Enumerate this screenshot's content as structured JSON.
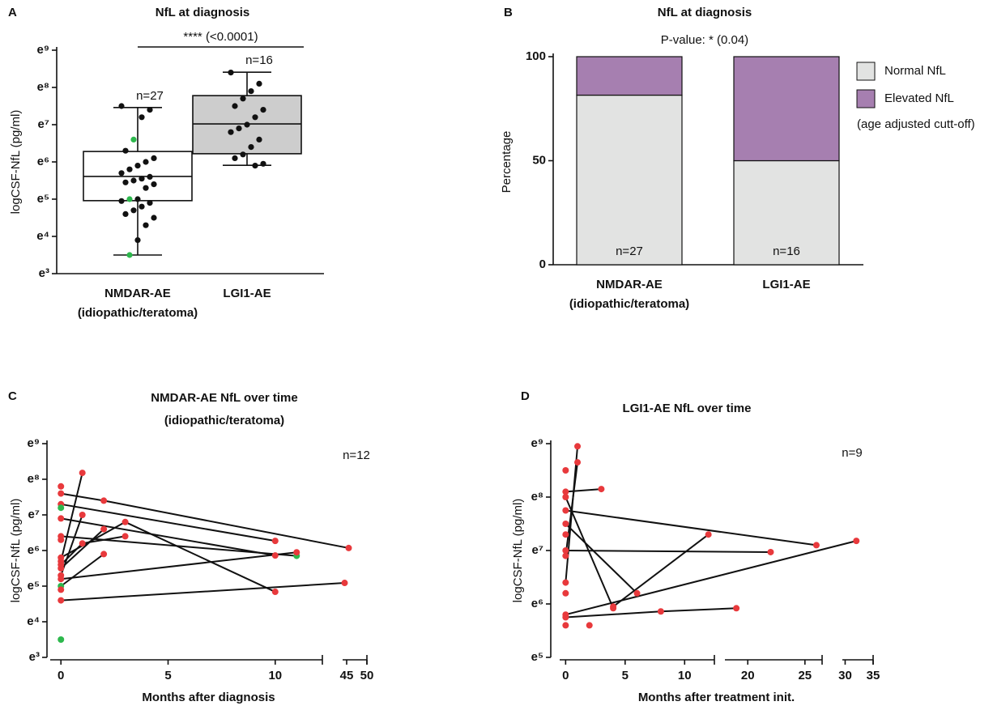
{
  "chart_data": [
    {
      "type": "box",
      "panel": "A",
      "title": "NfL at diagnosis",
      "y_label": "logCSF-NfL (pg/ml)",
      "categories": [
        [
          "NMDAR-AE",
          "(idiopathic/teratoma)"
        ],
        [
          "LGI1-AE"
        ]
      ],
      "significance": "**** (<0.0001)",
      "n_labels": [
        "n=27",
        "n=16"
      ],
      "box_colors": [
        "#ffffff",
        "#cdcdcd"
      ],
      "boxes": [
        {
          "q1": 4.96,
          "median": 5.61,
          "q3": 6.28,
          "whisker_low": 3.5,
          "whisker_high": 7.46
        },
        {
          "q1": 6.22,
          "median": 7.02,
          "q3": 7.78,
          "whisker_low": 5.91,
          "whisker_high": 8.41
        }
      ],
      "points": [
        {
          "values": [
            7.5,
            7.4,
            7.2,
            6.6,
            6.3,
            6.1,
            6.0,
            5.9,
            5.8,
            5.7,
            5.6,
            5.55,
            5.5,
            5.45,
            5.4,
            5.3,
            5.0,
            5.0,
            4.95,
            4.9,
            4.8,
            4.7,
            4.6,
            4.5,
            4.3,
            3.9,
            3.5
          ],
          "colors": [
            "#111",
            "#111",
            "#111",
            "#2db84d",
            "#111",
            "#111",
            "#111",
            "#111",
            "#111",
            "#111",
            "#111",
            "#111",
            "#111",
            "#111",
            "#111",
            "#111",
            "#111",
            "#2db84d",
            "#111",
            "#111",
            "#111",
            "#111",
            "#111",
            "#111",
            "#111",
            "#111",
            "#2db84d"
          ]
        },
        {
          "values": [
            8.4,
            8.1,
            7.9,
            7.7,
            7.5,
            7.4,
            7.2,
            7.0,
            6.9,
            6.8,
            6.6,
            6.4,
            6.2,
            6.1,
            5.95,
            5.9
          ],
          "colors": [
            "#111",
            "#111",
            "#111",
            "#111",
            "#111",
            "#111",
            "#111",
            "#111",
            "#111",
            "#111",
            "#111",
            "#111",
            "#111",
            "#111",
            "#111",
            "#111"
          ]
        }
      ],
      "ylim": [
        3,
        9
      ],
      "yticks": [
        {
          "value": 3,
          "label": "e³"
        },
        {
          "value": 4,
          "label": "e⁴"
        },
        {
          "value": 5,
          "label": "e⁵"
        },
        {
          "value": 6,
          "label": "e⁶"
        },
        {
          "value": 7,
          "label": "e⁷"
        },
        {
          "value": 8,
          "label": "e⁸"
        },
        {
          "value": 9,
          "label": "e⁹"
        }
      ]
    },
    {
      "type": "stacked_bar",
      "panel": "B",
      "title": "NfL at diagnosis",
      "subtitle": "P-value:  * (0.04)",
      "y_label": "Percentage",
      "categories": [
        [
          "NMDAR-AE",
          "(idiopathic/teratoma)"
        ],
        [
          "LGI1-AE"
        ]
      ],
      "n_labels": [
        "n=27",
        "n=16"
      ],
      "series": [
        {
          "name": "Normal NfL",
          "color": "#e2e3e2",
          "values": [
            81.5,
            50
          ]
        },
        {
          "name": "Elevated NfL",
          "color": "#a67fb0",
          "values": [
            18.5,
            50
          ]
        }
      ],
      "legend_note": "(age adjusted cutt-off)",
      "ylim": [
        0,
        100
      ],
      "yticks": [
        0,
        50,
        100
      ]
    },
    {
      "type": "line",
      "panel": "C",
      "title": [
        "NMDAR-AE NfL over time",
        "(idiopathic/teratoma)"
      ],
      "x_label": "Months after diagnosis",
      "y_label": "logCSF-NfL (pg/ml)",
      "n_label": "n=12",
      "xsegments": [
        [
          -0.5,
          12.2
        ],
        [
          44,
          50
        ]
      ],
      "xticks": [
        0,
        5,
        10,
        45,
        50
      ],
      "ylim": [
        3,
        9
      ],
      "yticks": [
        {
          "value": 3,
          "label": "e³"
        },
        {
          "value": 4,
          "label": "e⁴"
        },
        {
          "value": 5,
          "label": "e⁵"
        },
        {
          "value": 6,
          "label": "e⁶"
        },
        {
          "value": 7,
          "label": "e⁷"
        },
        {
          "value": 8,
          "label": "e⁸"
        },
        {
          "value": 9,
          "label": "e⁹"
        }
      ],
      "series": [
        {
          "x": [
            0,
            1
          ],
          "values": [
            5.7,
            8.18
          ],
          "colors": [
            "#e8393c",
            "#e8393c"
          ]
        },
        {
          "x": [
            0,
            2,
            45.5
          ],
          "values": [
            7.6,
            7.4,
            6.07
          ],
          "colors": [
            "#e8393c",
            "#e8393c",
            "#e8393c"
          ]
        },
        {
          "x": [
            0,
            10
          ],
          "values": [
            7.3,
            6.27
          ],
          "colors": [
            "#e8393c",
            "#e8393c"
          ]
        },
        {
          "x": [
            0,
            10
          ],
          "values": [
            6.9,
            5.86
          ],
          "colors": [
            "#e8393c",
            "#e8393c"
          ]
        },
        {
          "x": [
            0,
            11
          ],
          "values": [
            6.4,
            5.85
          ],
          "colors": [
            "#e8393c",
            "#2db84d"
          ]
        },
        {
          "x": [
            0,
            3,
            10
          ],
          "values": [
            5.8,
            6.8,
            4.84
          ],
          "colors": [
            "#e8393c",
            "#e8393c",
            "#e8393c"
          ]
        },
        {
          "x": [
            0,
            1
          ],
          "values": [
            5.3,
            7.0
          ],
          "colors": [
            "#e8393c",
            "#e8393c"
          ]
        },
        {
          "x": [
            0,
            2
          ],
          "values": [
            5.5,
            6.6
          ],
          "colors": [
            "#e8393c",
            "#e8393c"
          ]
        },
        {
          "x": [
            0,
            1,
            3
          ],
          "values": [
            5.6,
            6.2,
            6.4
          ],
          "colors": [
            "#e8393c",
            "#e8393c",
            "#e8393c"
          ]
        },
        {
          "x": [
            0,
            2
          ],
          "values": [
            5.0,
            5.9
          ],
          "colors": [
            "#2db84d",
            "#e8393c"
          ]
        },
        {
          "x": [
            0,
            11
          ],
          "values": [
            5.2,
            5.95
          ],
          "colors": [
            "#e8393c",
            "#e8393c"
          ]
        },
        {
          "x": [
            0,
            44.5
          ],
          "values": [
            4.6,
            5.09
          ],
          "colors": [
            "#e8393c",
            "#e8393c"
          ]
        },
        {
          "x": [
            0,
            0,
            0,
            0,
            0
          ],
          "values": [
            3.5,
            7.8,
            6.3,
            7.2,
            4.9
          ],
          "colors": [
            "#2db84d",
            "#e8393c",
            "#e8393c",
            "#2db84d",
            "#e8393c"
          ],
          "connect": false
        }
      ]
    },
    {
      "type": "line",
      "panel": "D",
      "title": [
        "LGI1-AE NfL over time"
      ],
      "x_label": "Months after treatment init.",
      "y_label": "logCSF-NfL (pg/ml)",
      "n_label": "n=9",
      "xsegments": [
        [
          -0.5,
          12.5
        ],
        [
          18,
          26.5
        ],
        [
          29.5,
          35
        ]
      ],
      "xticks": [
        0,
        5,
        10,
        20,
        25,
        30,
        35
      ],
      "ylim": [
        5,
        9
      ],
      "yticks": [
        {
          "value": 5,
          "label": "e⁵"
        },
        {
          "value": 6,
          "label": "e⁶"
        },
        {
          "value": 7,
          "label": "e⁷"
        },
        {
          "value": 8,
          "label": "e⁸"
        },
        {
          "value": 9,
          "label": "e⁹"
        }
      ],
      "series": [
        {
          "x": [
            0,
            1
          ],
          "values": [
            6.4,
            8.95
          ],
          "colors": [
            "#e8393c",
            "#e8393c"
          ]
        },
        {
          "x": [
            0,
            1
          ],
          "values": [
            6.9,
            8.65
          ],
          "colors": [
            "#e8393c",
            "#e8393c"
          ]
        },
        {
          "x": [
            0,
            3
          ],
          "values": [
            8.1,
            8.15
          ],
          "colors": [
            "#e8393c",
            "#e8393c"
          ]
        },
        {
          "x": [
            0,
            4
          ],
          "values": [
            8.0,
            5.92
          ],
          "colors": [
            "#e8393c",
            "#e8393c"
          ]
        },
        {
          "x": [
            0,
            6
          ],
          "values": [
            7.5,
            6.2
          ],
          "colors": [
            "#e8393c",
            "#e8393c"
          ]
        },
        {
          "x": [
            0,
            26
          ],
          "values": [
            7.75,
            7.1
          ],
          "colors": [
            "#e8393c",
            "#e8393c"
          ]
        },
        {
          "x": [
            0,
            22
          ],
          "values": [
            7.0,
            6.97
          ],
          "colors": [
            "#e8393c",
            "#e8393c"
          ]
        },
        {
          "x": [
            4,
            12
          ],
          "values": [
            5.95,
            7.3
          ],
          "colors": [
            "#e8393c",
            "#e8393c"
          ]
        },
        {
          "x": [
            0,
            32
          ],
          "values": [
            5.8,
            7.18
          ],
          "colors": [
            "#e8393c",
            "#e8393c"
          ]
        },
        {
          "x": [
            0,
            8,
            19
          ],
          "values": [
            5.75,
            5.86,
            5.92
          ],
          "colors": [
            "#e8393c",
            "#e8393c",
            "#e8393c"
          ]
        },
        {
          "x": [
            0,
            0,
            0,
            0,
            2
          ],
          "values": [
            8.5,
            7.3,
            6.2,
            5.6,
            5.6
          ],
          "colors": [
            "#e8393c",
            "#e8393c",
            "#e8393c",
            "#e8393c",
            "#e8393c"
          ],
          "connect": false
        }
      ]
    }
  ]
}
